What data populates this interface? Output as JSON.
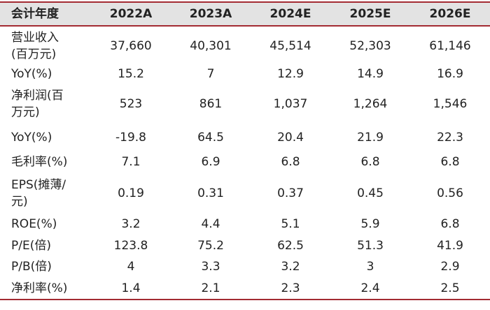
{
  "table": {
    "header": [
      "会计年度",
      "2022A",
      "2023A",
      "2024E",
      "2025E",
      "2026E"
    ],
    "rows": [
      {
        "label": [
          "营业收入",
          "(百万元)"
        ],
        "values": [
          "37,660",
          "40,301",
          "45,514",
          "52,303",
          "61,146"
        ]
      },
      {
        "label": [
          "YoY(%)"
        ],
        "values": [
          "15.2",
          "7",
          "12.9",
          "14.9",
          "16.9"
        ]
      },
      {
        "label": [
          "净利润(百",
          "万元)"
        ],
        "values": [
          "523",
          "861",
          "1,037",
          "1,264",
          "1,546"
        ]
      },
      {
        "label": [
          "YoY(%)"
        ],
        "values": [
          "-19.8",
          "64.5",
          "20.4",
          "21.9",
          "22.3"
        ]
      },
      {
        "label": [
          "毛利率(%)"
        ],
        "values": [
          "7.1",
          "6.9",
          "6.8",
          "6.8",
          "6.8"
        ]
      },
      {
        "label": [
          "EPS(摊薄/",
          "元)"
        ],
        "values": [
          "0.19",
          "0.31",
          "0.37",
          "0.45",
          "0.56"
        ]
      },
      {
        "label": [
          "ROE(%)"
        ],
        "values": [
          "3.2",
          "4.4",
          "5.1",
          "5.9",
          "6.8"
        ]
      },
      {
        "label": [
          "P/E(倍)"
        ],
        "values": [
          "123.8",
          "75.2",
          "62.5",
          "51.3",
          "41.9"
        ]
      },
      {
        "label": [
          "P/B(倍)"
        ],
        "values": [
          "4",
          "3.3",
          "3.2",
          "3",
          "2.9"
        ]
      },
      {
        "label": [
          "净利率(%)"
        ],
        "values": [
          "1.4",
          "2.1",
          "2.3",
          "2.4",
          "2.5"
        ]
      }
    ]
  }
}
